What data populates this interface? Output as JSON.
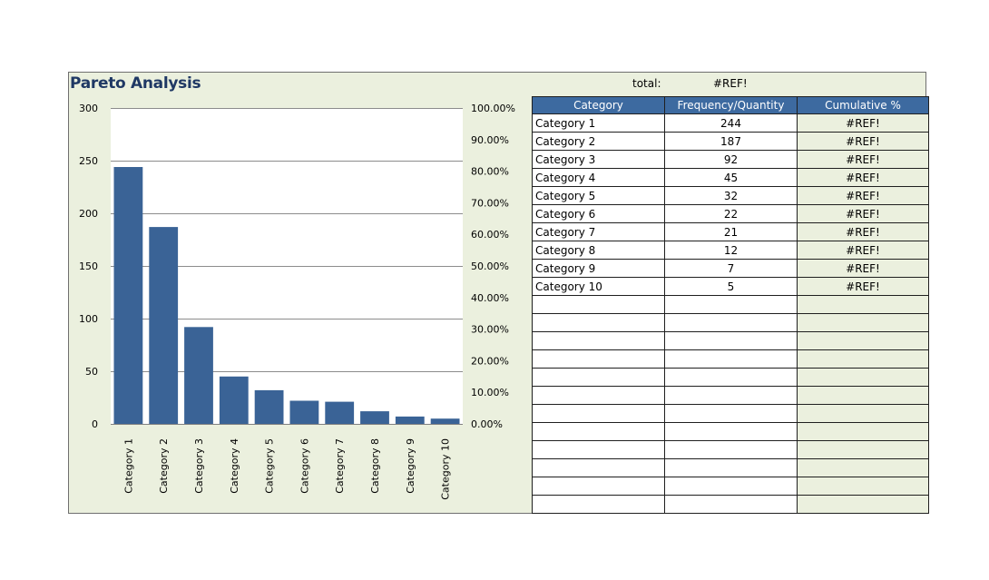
{
  "header": {
    "title": "Pareto Analysis",
    "total_label": "total:",
    "total_value": "#REF!"
  },
  "colors": {
    "bar": "#3a6396",
    "header_fill": "#3d6aa0",
    "panel_fill": "#ebf0de",
    "title": "#1f3864"
  },
  "table": {
    "columns": [
      "Category",
      "Frequency/Quantity",
      "Cumulative %"
    ],
    "rows": [
      [
        "Category 1",
        "244",
        "#REF!"
      ],
      [
        "Category 2",
        "187",
        "#REF!"
      ],
      [
        "Category 3",
        "92",
        "#REF!"
      ],
      [
        "Category 4",
        "45",
        "#REF!"
      ],
      [
        "Category 5",
        "32",
        "#REF!"
      ],
      [
        "Category 6",
        "22",
        "#REF!"
      ],
      [
        "Category 7",
        "21",
        "#REF!"
      ],
      [
        "Category 8",
        "12",
        "#REF!"
      ],
      [
        "Category 9",
        "7",
        "#REF!"
      ],
      [
        "Category 10",
        "5",
        "#REF!"
      ],
      [
        "",
        "",
        ""
      ],
      [
        "",
        "",
        ""
      ],
      [
        "",
        "",
        ""
      ],
      [
        "",
        "",
        ""
      ],
      [
        "",
        "",
        ""
      ],
      [
        "",
        "",
        ""
      ],
      [
        "",
        "",
        ""
      ],
      [
        "",
        "",
        ""
      ],
      [
        "",
        "",
        ""
      ],
      [
        "",
        "",
        ""
      ],
      [
        "",
        "",
        ""
      ],
      [
        "",
        "",
        ""
      ]
    ]
  },
  "chart_data": {
    "type": "bar",
    "title": "",
    "categories": [
      "Category 1",
      "Category 2",
      "Category 3",
      "Category 4",
      "Category 5",
      "Category 6",
      "Category 7",
      "Category 8",
      "Category 9",
      "Category 10"
    ],
    "values": [
      244,
      187,
      92,
      45,
      32,
      22,
      21,
      12,
      7,
      5
    ],
    "ylim": [
      0,
      300
    ],
    "y_ticks": [
      "0",
      "50",
      "100",
      "150",
      "200",
      "250",
      "300"
    ],
    "y2lim": [
      0,
      1
    ],
    "y2_ticks": [
      "0.00%",
      "10.00%",
      "20.00%",
      "30.00%",
      "40.00%",
      "50.00%",
      "60.00%",
      "70.00%",
      "80.00%",
      "90.00%",
      "100.00%"
    ],
    "xlabel": "",
    "ylabel": "",
    "grid": true,
    "legend": "none"
  }
}
